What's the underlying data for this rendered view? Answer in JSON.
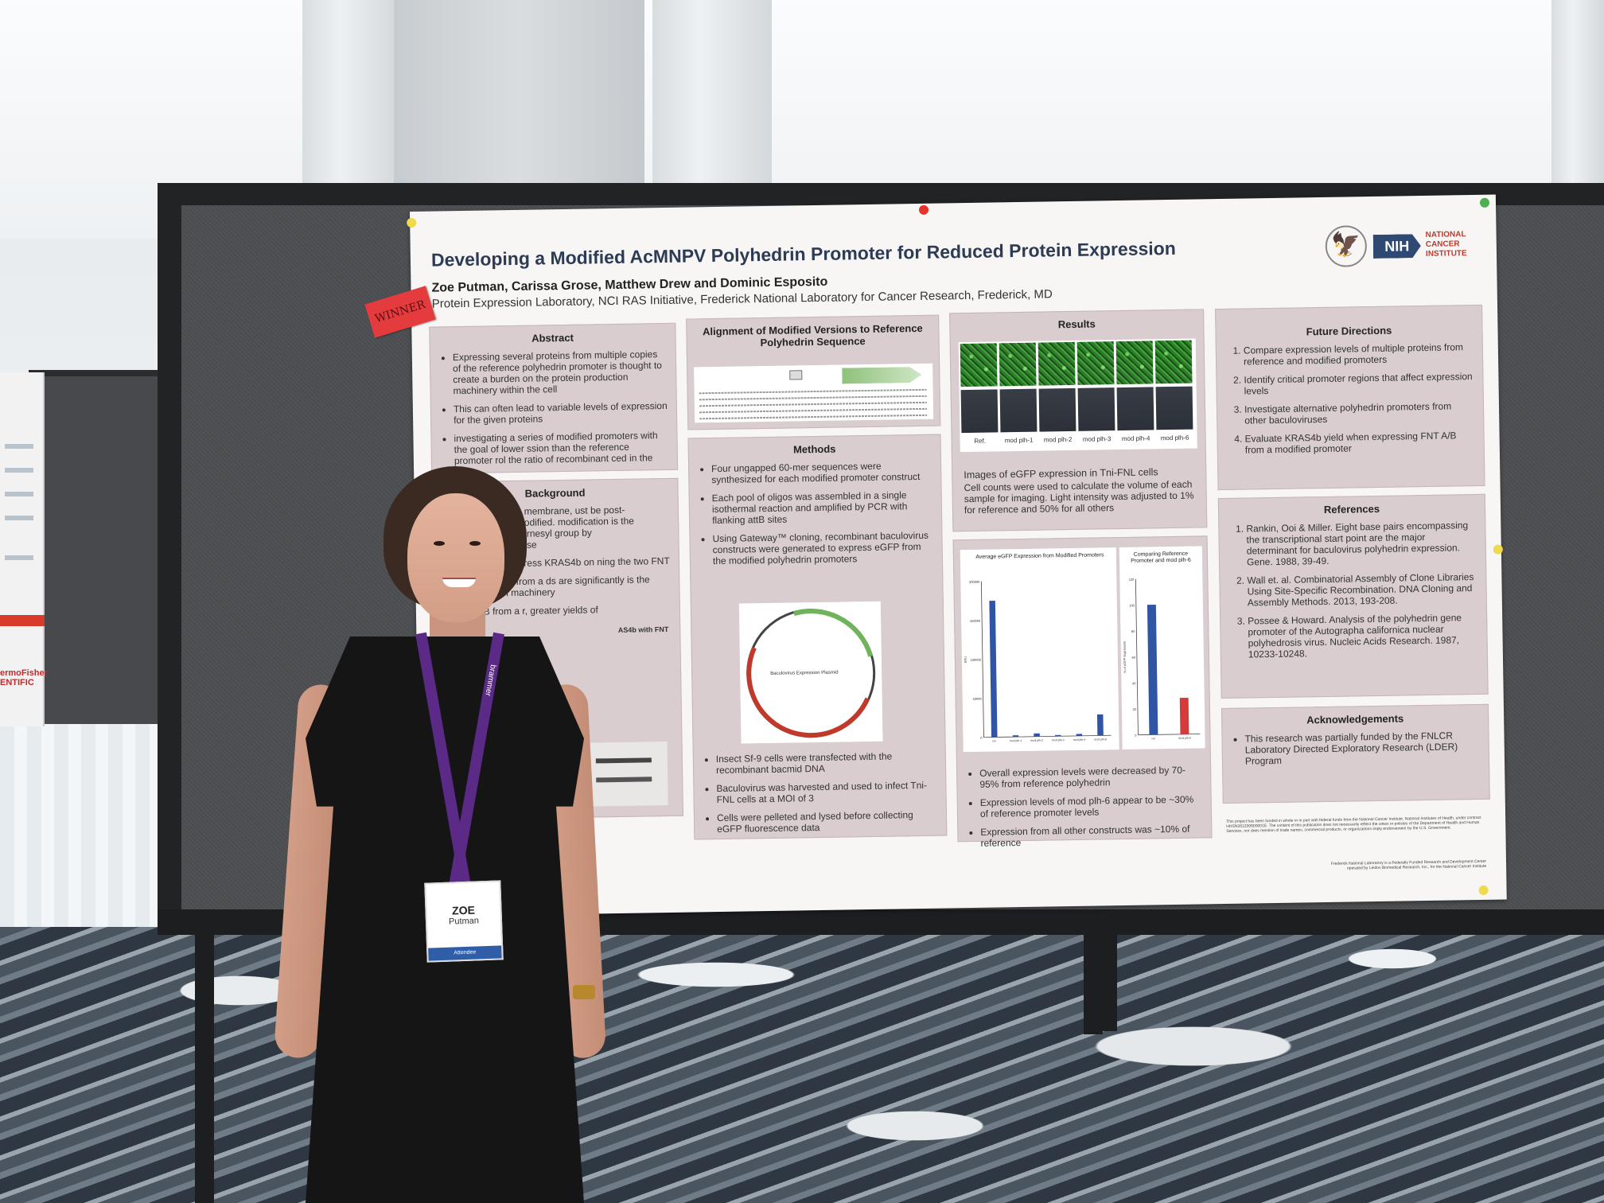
{
  "poster": {
    "title": "Developing a Modified AcMNPV Polyhedrin Promoter for Reduced Protein Expression",
    "authors": "Zoe Putman, Carissa Grose, Matthew Drew and Dominic Esposito",
    "affiliation": "Protein Expression Laboratory, NCI RAS Initiative, Frederick National Laboratory for Cancer Research, Frederick, MD",
    "logo": {
      "nih": "NIH",
      "nci": "NATIONAL CANCER INSTITUTE",
      "seal_icon": "hhs-eagle-seal-icon"
    },
    "abstract": {
      "heading": "Abstract",
      "bullets": [
        "Expressing several proteins from multiple copies of the reference polyhedrin promoter is thought to create a burden on the protein production machinery within the cell",
        "This can often lead to variable levels of expression for the given proteins",
        "investigating a series of modified promoters with the goal of lower ssion than the reference promoter rol the ratio of recombinant ced in the cell"
      ]
    },
    "background": {
      "heading": "Background",
      "bullets": [
        "with the plasma membrane, ust be post-translationally modified. modification is the addition of a 15- rnesyl group by farnesyltransferase",
        "ification, we express KRAS4b on ning the two FNT",
        "co-expressed from a ds are significantly is the result of tion machinery",
        "FNTA/B from a r, greater yields of"
      ],
      "figure_label": "AS4b with FNT"
    },
    "alignment": {
      "heading": "Alignment of Modified Versions to Reference Polyhedrin Sequence"
    },
    "methods": {
      "heading": "Methods",
      "bullets_top": [
        "Four ungapped 60-mer sequences were synthesized for each modified promoter construct",
        "Each pool of oligos was assembled in a single isothermal reaction and amplified by PCR with flanking attB sites",
        "Using Gateway™ cloning, recombinant baculovirus constructs were generated to express eGFP from the modified polyhedrin promoters"
      ],
      "plasmid_label": "Baculovirus Expression Plasmid",
      "bullets_bottom": [
        "Insect Sf-9 cells were transfected with the recombinant bacmid DNA",
        "Baculovirus was harvested and used to infect Tni-FNL cells at a MOI of 3",
        "Cells were pelleted and lysed before collecting eGFP fluorescence data"
      ]
    },
    "results": {
      "heading": "Results",
      "image_labels": [
        "Ref.",
        "mod plh-1",
        "mod plh-2",
        "mod plh-3",
        "mod plh-4",
        "mod plh-6"
      ],
      "caption_title": "Images of eGFP expression in Tni-FNL cells",
      "caption": "Cell counts were used to calculate the volume of each sample for imaging. Light intensity was adjusted to 1% for reference and 50% for all others",
      "bullets": [
        "Overall expression levels were decreased by 70-95% from reference polyhedrin",
        "Expression levels of mod plh-6 appear to be ~30% of reference promoter levels",
        "Expression from all other constructs was ~10% of reference"
      ]
    },
    "future": {
      "heading": "Future Directions",
      "items": [
        "Compare expression levels of multiple proteins from reference and modified promoters",
        "Identify critical promoter regions that affect expression levels",
        "Investigate alternative polyhedrin promoters from other baculoviruses",
        "Evaluate KRAS4b yield when expressing FNT A/B from a modified promoter"
      ]
    },
    "references": {
      "heading": "References",
      "items": [
        "Rankin, Ooi & Miller. Eight base pairs encompassing the transcriptional start point are the major determinant for baculovirus polyhedrin expression. Gene. 1988, 39-49.",
        "Wall et. al. Combinatorial Assembly of Clone Libraries Using Site-Specific Recombination. DNA Cloning and Assembly Methods. 2013, 193-208.",
        "Possee & Howard. Analysis of the polyhedrin gene promoter of the Autographa californica nuclear polyhedrosis virus. Nucleic Acids Research. 1987, 10233-10248."
      ]
    },
    "acknowledgements": {
      "heading": "Acknowledgements",
      "bullets": [
        "This research was partially funded by the FNLCR Laboratory Directed Exploratory Research (LDER) Program"
      ]
    },
    "funding_note": "This project has been funded in whole or in part with federal funds from the National Cancer Institute, National Institutes of Health, under contract HHSN261200800001E. The content of this publication does not necessarily reflect the views or policies of the Department of Health and Human Services, nor does mention of trade names, commercial products, or organizations imply endorsement by the U.S. Government.",
    "fnl_note": "Frederick National Laboratory is a Federally Funded Research and Development Center operated by Leidos Biomedical Research, Inc., for the National Cancer Institute"
  },
  "chart_data": [
    {
      "type": "bar",
      "title": "Average eGFP Expression from Modified Promoters",
      "ylabel": "RFU",
      "categories": [
        "ref.",
        "mod plh-1",
        "mod plh-2",
        "mod plh-3",
        "mod plh-4",
        "mod plh-6"
      ],
      "values": [
        175000,
        2000,
        4000,
        1500,
        2500,
        27000
      ],
      "ylim": [
        0,
        200000
      ],
      "yticks": [
        "0",
        "50000",
        "100000",
        "150000",
        "200000"
      ],
      "colors": [
        "#2f55a4"
      ],
      "grid": false,
      "legend": "none"
    },
    {
      "type": "bar",
      "title": "Comparing Reference Promoter and mod plh-6",
      "ylabel": "% of eGFP Expression",
      "categories": [
        "ref.",
        "mod plh-6"
      ],
      "values": [
        100,
        28
      ],
      "ylim": [
        0,
        120
      ],
      "yticks": [
        "0",
        "20",
        "40",
        "60",
        "80",
        "100",
        "120"
      ],
      "colors": [
        "#2f55a4",
        "#d63a3a"
      ],
      "grid": false,
      "legend": "none"
    }
  ],
  "signage": {
    "winner": "WINNER",
    "left_poster_brand": "ermoFisher",
    "left_poster_brand2": "ENTIFIC"
  },
  "badge": {
    "first": "ZOE",
    "last": "Putman",
    "role": "Attendee",
    "lanyard_text": "brammer"
  }
}
